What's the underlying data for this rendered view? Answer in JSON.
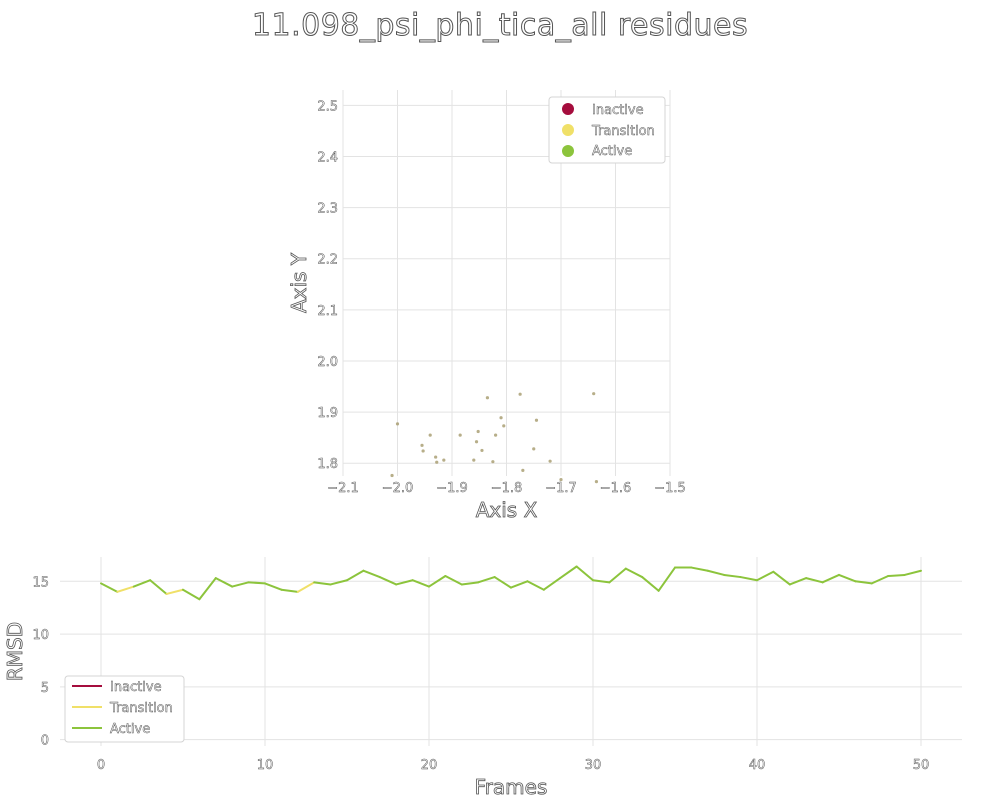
{
  "title": "11.098_psi_phi_tica_all residues",
  "colors": {
    "inactive": "#a50d3d",
    "transition": "#f0e068",
    "active": "#8cc43c"
  },
  "chart_data": [
    {
      "type": "scatter",
      "xlabel": "Axis X",
      "ylabel": "Axis Y",
      "xlim": [
        -2.1,
        -1.5
      ],
      "ylim": [
        1.775,
        2.53
      ],
      "xticks": [
        -2.1,
        -2.0,
        -1.9,
        -1.8,
        -1.7,
        -1.6,
        -1.5
      ],
      "xtick_labels": [
        "−2.1",
        "−2.0",
        "−1.9",
        "−1.8",
        "−1.7",
        "−1.6",
        "−1.5"
      ],
      "yticks": [
        1.8,
        1.9,
        2.0,
        2.1,
        2.2,
        2.3,
        2.4,
        2.5
      ],
      "ytick_labels": [
        "1.8",
        "1.9",
        "2.0",
        "2.1",
        "2.2",
        "2.3",
        "2.4",
        "2.5"
      ],
      "grid": true,
      "legend_position": "top-right",
      "legend": [
        "Inactive",
        "Transition",
        "Active"
      ],
      "points": [
        {
          "x": -2.01,
          "y": 1.776
        },
        {
          "x": -2.0,
          "y": 1.877
        },
        {
          "x": -1.955,
          "y": 1.835
        },
        {
          "x": -1.953,
          "y": 1.824
        },
        {
          "x": -1.94,
          "y": 1.855
        },
        {
          "x": -1.93,
          "y": 1.812
        },
        {
          "x": -1.928,
          "y": 1.802
        },
        {
          "x": -1.915,
          "y": 1.806
        },
        {
          "x": -1.885,
          "y": 1.855
        },
        {
          "x": -1.86,
          "y": 1.806
        },
        {
          "x": -1.855,
          "y": 1.842
        },
        {
          "x": -1.852,
          "y": 1.862
        },
        {
          "x": -1.845,
          "y": 1.825
        },
        {
          "x": -1.835,
          "y": 1.928
        },
        {
          "x": -1.825,
          "y": 1.803
        },
        {
          "x": -1.82,
          "y": 1.855
        },
        {
          "x": -1.81,
          "y": 1.889
        },
        {
          "x": -1.805,
          "y": 1.873
        },
        {
          "x": -1.775,
          "y": 1.935
        },
        {
          "x": -1.77,
          "y": 1.786
        },
        {
          "x": -1.75,
          "y": 1.828
        },
        {
          "x": -1.745,
          "y": 1.884
        },
        {
          "x": -1.72,
          "y": 1.804
        },
        {
          "x": -1.7,
          "y": 1.768
        },
        {
          "x": -1.64,
          "y": 1.936
        },
        {
          "x": -1.635,
          "y": 1.764
        }
      ]
    },
    {
      "type": "line",
      "xlabel": "Frames",
      "ylabel": "RMSD",
      "xlim": [
        -2.5,
        52.5
      ],
      "ylim": [
        -0.6,
        17.3
      ],
      "xticks": [
        0,
        10,
        20,
        30,
        40,
        50
      ],
      "yticks": [
        0,
        5,
        10,
        15
      ],
      "grid": true,
      "legend_position": "lower-left",
      "legend": [
        "Inactive",
        "Transition",
        "Active"
      ],
      "x": [
        0,
        1,
        2,
        3,
        4,
        5,
        6,
        7,
        8,
        9,
        10,
        11,
        12,
        13,
        14,
        15,
        16,
        17,
        18,
        19,
        20,
        21,
        22,
        23,
        24,
        25,
        26,
        27,
        28,
        29,
        30,
        31,
        32,
        33,
        34,
        35,
        36,
        37,
        38,
        39,
        40,
        41,
        42,
        43,
        44,
        45,
        46,
        47,
        48,
        49,
        50
      ],
      "y": [
        14.8,
        14.0,
        14.5,
        15.1,
        13.8,
        14.2,
        13.3,
        15.3,
        14.5,
        14.9,
        14.8,
        14.2,
        14.0,
        14.9,
        14.7,
        15.1,
        16.0,
        15.4,
        14.7,
        15.1,
        14.5,
        15.5,
        14.7,
        14.9,
        15.4,
        14.4,
        15.0,
        14.2,
        15.3,
        16.4,
        15.1,
        14.9,
        16.2,
        15.4,
        14.1,
        16.3,
        16.3,
        16.0,
        15.6,
        15.4,
        15.1,
        15.9,
        14.7,
        15.3,
        14.9,
        15.6,
        15.0,
        14.8,
        15.5,
        15.6,
        16.0
      ],
      "segment_state": [
        "active",
        "transition",
        "active",
        "active",
        "transition",
        "active",
        "active",
        "active",
        "active",
        "active",
        "active",
        "active",
        "transition",
        "active",
        "active",
        "active",
        "active",
        "active",
        "active",
        "active",
        "active",
        "active",
        "active",
        "active",
        "active",
        "active",
        "active",
        "active",
        "active",
        "active",
        "active",
        "active",
        "active",
        "active",
        "active",
        "active",
        "active",
        "active",
        "active",
        "active",
        "active",
        "active",
        "active",
        "active",
        "active",
        "active",
        "active",
        "active",
        "active",
        "active"
      ]
    }
  ]
}
